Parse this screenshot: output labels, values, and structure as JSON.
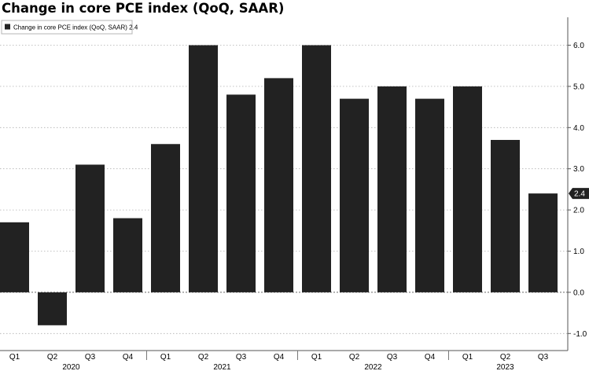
{
  "title": "Change in core PCE index (QoQ, SAAR)",
  "chart_data": {
    "type": "bar",
    "title": "Change in core PCE index (QoQ, SAAR)",
    "categories": [
      "Q1",
      "Q2",
      "Q3",
      "Q4",
      "Q1",
      "Q2",
      "Q3",
      "Q4",
      "Q1",
      "Q2",
      "Q3",
      "Q4",
      "Q1",
      "Q2",
      "Q3"
    ],
    "years": [
      {
        "label": "2020",
        "start": 0,
        "end": 3
      },
      {
        "label": "2021",
        "start": 4,
        "end": 7
      },
      {
        "label": "2022",
        "start": 8,
        "end": 11
      },
      {
        "label": "2023",
        "start": 12,
        "end": 14
      }
    ],
    "series": [
      {
        "name": "Change in core PCE index (QoQ, SAAR)",
        "values": [
          1.7,
          -0.8,
          3.1,
          1.8,
          3.6,
          6.0,
          4.8,
          5.2,
          6.0,
          4.7,
          5.0,
          4.7,
          5.0,
          3.7,
          2.4
        ]
      }
    ],
    "legend": {
      "label": "Change in core PCE index (QoQ, SAAR) 2.4",
      "position": "top-left"
    },
    "last_value_label": "2.4",
    "ylim": [
      -1.5,
      6.6
    ],
    "yticks": [
      -1.0,
      0.0,
      1.0,
      2.0,
      3.0,
      4.0,
      5.0,
      6.0
    ],
    "ytick_labels": [
      "-1.0",
      "0.0",
      "1.0",
      "2.0",
      "3.0",
      "4.0",
      "5.0",
      "6.0"
    ],
    "grid": true,
    "yaxis_side": "right",
    "bar_color": "#222222"
  }
}
